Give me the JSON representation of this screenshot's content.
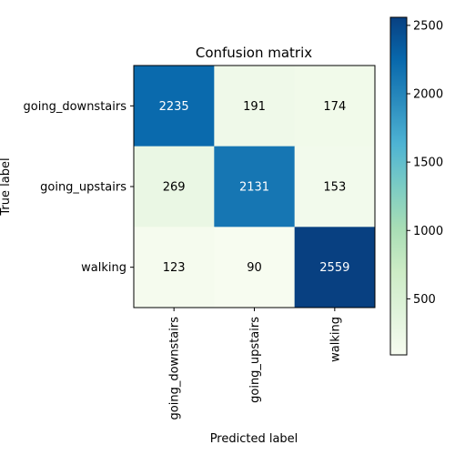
{
  "chart_data": {
    "type": "heatmap",
    "title": "Confusion matrix",
    "xlabel": "Predicted label",
    "ylabel": "True label",
    "row_labels": [
      "going_downstairs",
      "going_upstairs",
      "walking"
    ],
    "col_labels": [
      "going_downstairs",
      "going_upstairs",
      "walking"
    ],
    "values": [
      [
        2235,
        191,
        174
      ],
      [
        269,
        2131,
        153
      ],
      [
        123,
        90,
        2559
      ]
    ],
    "colormap": "GnBu",
    "color_range": [
      90,
      2559
    ],
    "colorbar_ticks": [
      500,
      1000,
      1500,
      2000,
      2500
    ],
    "grid": false
  }
}
